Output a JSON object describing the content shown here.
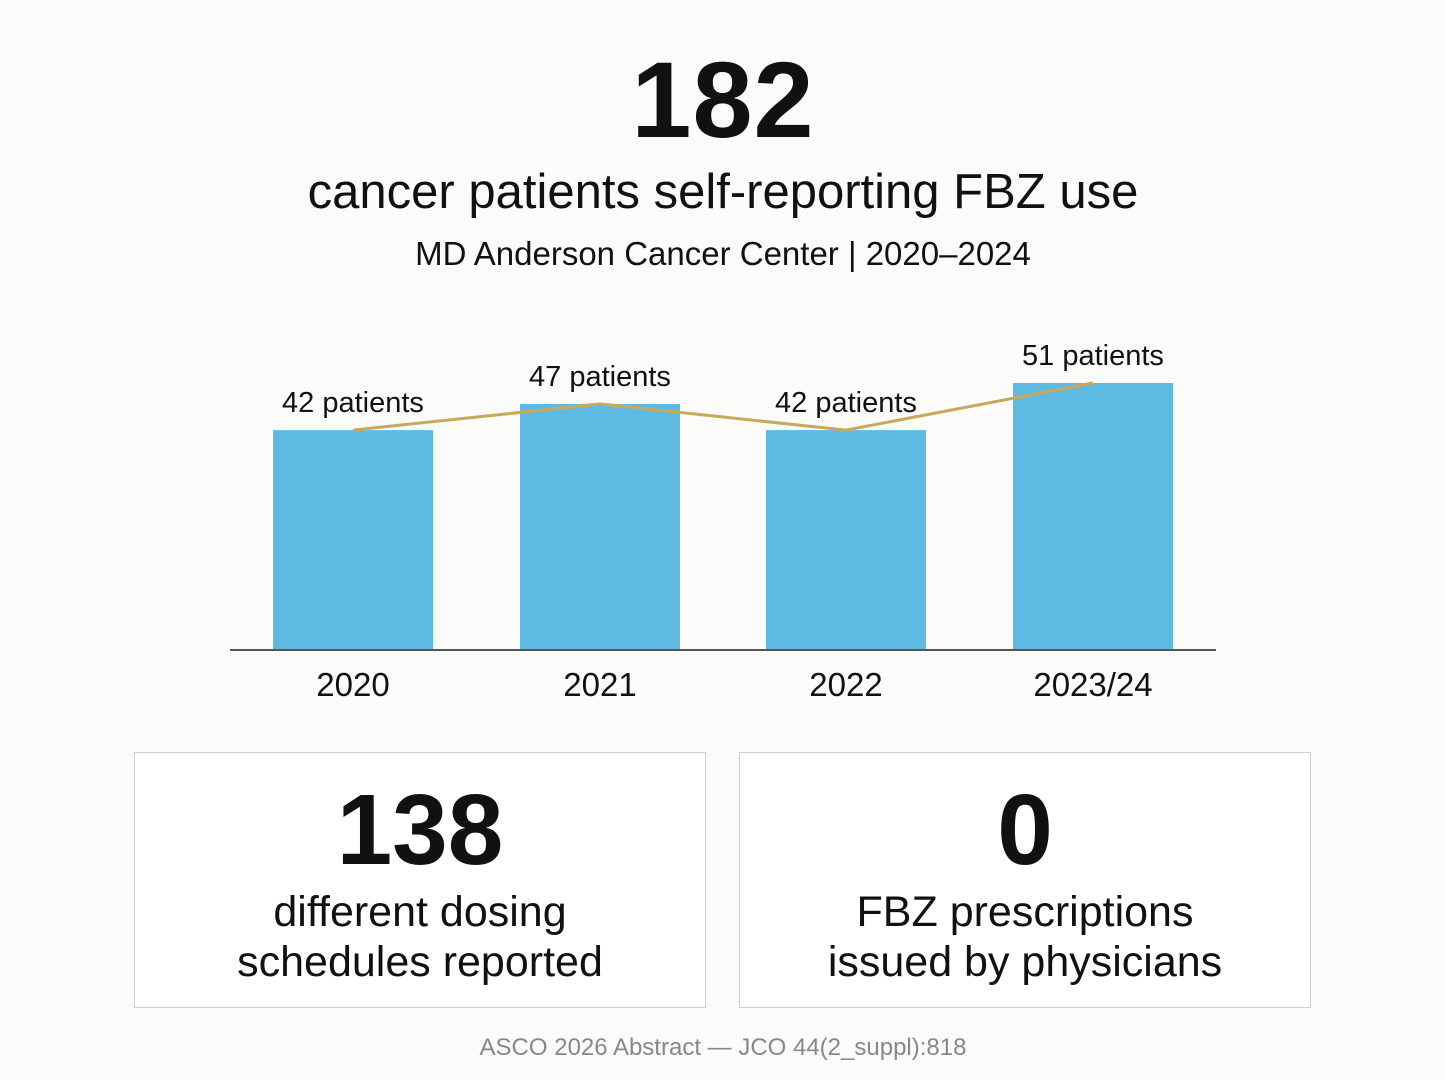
{
  "headline": {
    "number": "182",
    "text": "cancer patients self-reporting FBZ use",
    "subtitle": "MD Anderson Cancer Center | 2020–2024"
  },
  "chart_data": {
    "type": "bar",
    "categories": [
      "2020",
      "2021",
      "2022",
      "2023/24"
    ],
    "values": [
      42,
      47,
      42,
      51
    ],
    "data_labels": [
      "42 patients",
      "47 patients",
      "42 patients",
      "51 patients"
    ],
    "overlay_line": true,
    "ylim": [
      0,
      51
    ],
    "grid": false,
    "bar_color": "#5dbbe3",
    "line_color": "#c9a85a",
    "axis_color": "#555555"
  },
  "stats": [
    {
      "number": "138",
      "line1": "different dosing",
      "line2": "schedules reported"
    },
    {
      "number": "0",
      "line1": "FBZ prescriptions",
      "line2": "issued by physicians"
    }
  ],
  "footer": "ASCO 2026 Abstract — JCO 44(2_suppl):818"
}
